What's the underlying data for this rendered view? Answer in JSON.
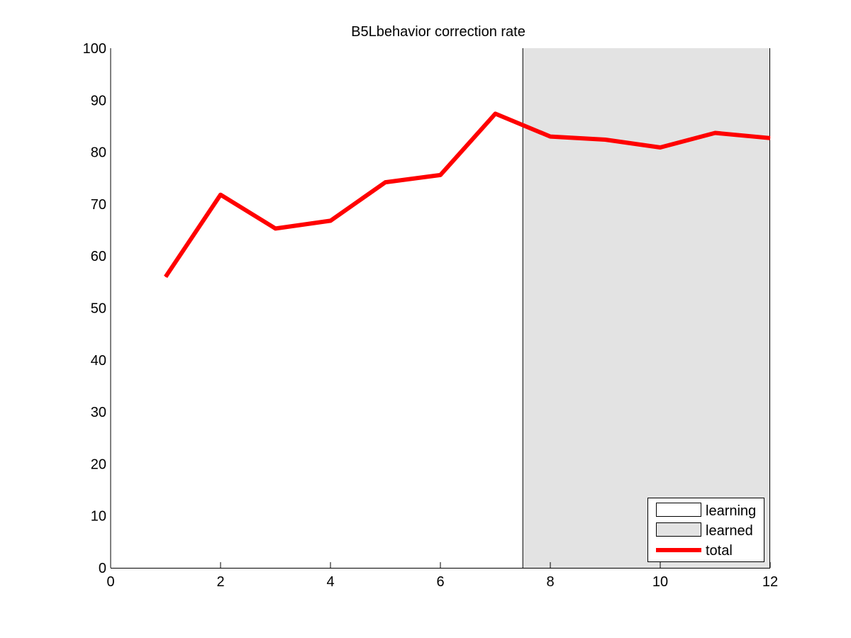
{
  "chart_data": {
    "type": "line",
    "title": "B5Lbehavior correction rate",
    "xlabel": "",
    "ylabel": "",
    "xlim": [
      0,
      12
    ],
    "ylim": [
      0,
      100
    ],
    "xticks": [
      0,
      2,
      4,
      6,
      8,
      10,
      12
    ],
    "yticks": [
      0,
      10,
      20,
      30,
      40,
      50,
      60,
      70,
      80,
      90,
      100
    ],
    "grid": false,
    "legend_position": "bottom-right",
    "regions": [
      {
        "name": "learning",
        "x_start": 0,
        "x_end": 7.5,
        "color": "#ffffff"
      },
      {
        "name": "learned",
        "x_start": 7.5,
        "x_end": 12,
        "color": "#e3e3e3"
      }
    ],
    "series": [
      {
        "name": "total",
        "color": "#ff0000",
        "x": [
          1,
          2,
          3,
          4,
          5,
          6,
          7,
          8,
          9,
          10,
          11,
          12
        ],
        "values": [
          56,
          71.8,
          65.3,
          66.8,
          74.2,
          75.6,
          87.4,
          83,
          82.4,
          80.9,
          83.7,
          82.7
        ]
      }
    ],
    "legend": [
      {
        "label": "learning",
        "kind": "patch",
        "color": "#ffffff"
      },
      {
        "label": "learned",
        "kind": "patch",
        "color": "#e3e3e3"
      },
      {
        "label": "total",
        "kind": "line",
        "color": "#ff0000"
      }
    ]
  }
}
